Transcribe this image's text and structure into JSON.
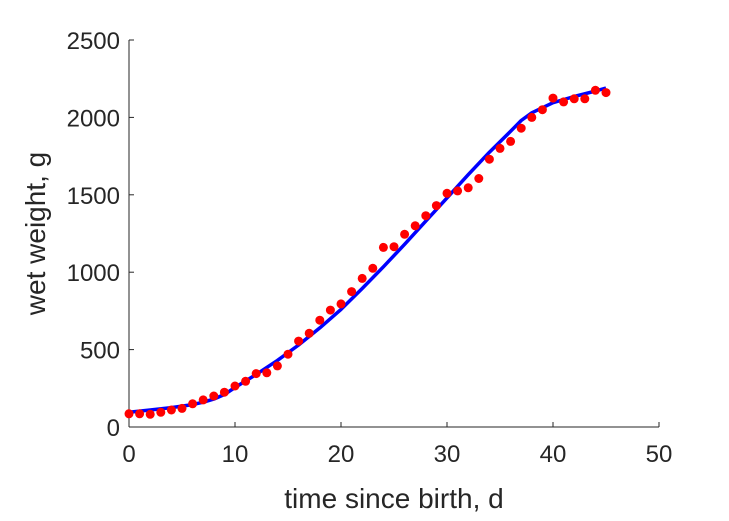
{
  "chart_data": {
    "type": "scatter",
    "title": "",
    "xlabel": "time since birth, d",
    "ylabel": "wet weight, g",
    "xlim": [
      0,
      50
    ],
    "ylim": [
      0,
      2500
    ],
    "x_ticks": [
      0,
      10,
      20,
      30,
      40,
      50
    ],
    "y_ticks": [
      0,
      500,
      1000,
      1500,
      2000,
      2500
    ],
    "x_tick_labels": [
      "0",
      "10",
      "20",
      "30",
      "40",
      "50"
    ],
    "y_tick_labels": [
      "0",
      "500",
      "1000",
      "1500",
      "2000",
      "2500"
    ],
    "grid": false,
    "legend": "none",
    "series": [
      {
        "kind": "scatter",
        "color": "#ff0000",
        "points": [
          [
            0,
            85
          ],
          [
            1,
            85
          ],
          [
            2,
            82
          ],
          [
            3,
            95
          ],
          [
            4,
            110
          ],
          [
            5,
            120
          ],
          [
            6,
            150
          ],
          [
            7,
            175
          ],
          [
            8,
            200
          ],
          [
            9,
            225
          ],
          [
            10,
            265
          ],
          [
            11,
            295
          ],
          [
            12,
            345
          ],
          [
            13,
            350
          ],
          [
            14,
            395
          ],
          [
            15,
            470
          ],
          [
            16,
            555
          ],
          [
            17,
            605
          ],
          [
            18,
            690
          ],
          [
            19,
            755
          ],
          [
            20,
            795
          ],
          [
            21,
            875
          ],
          [
            22,
            960
          ],
          [
            23,
            1025
          ],
          [
            24,
            1160
          ],
          [
            25,
            1165
          ],
          [
            26,
            1245
          ],
          [
            27,
            1300
          ],
          [
            28,
            1365
          ],
          [
            29,
            1430
          ],
          [
            30,
            1510
          ],
          [
            31,
            1525
          ],
          [
            32,
            1545
          ],
          [
            33,
            1605
          ],
          [
            34,
            1730
          ],
          [
            35,
            1800
          ],
          [
            36,
            1845
          ],
          [
            37,
            1930
          ],
          [
            38,
            2000
          ],
          [
            39,
            2050
          ],
          [
            40,
            2125
          ],
          [
            41,
            2100
          ],
          [
            42,
            2120
          ],
          [
            43,
            2120
          ],
          [
            44,
            2175
          ],
          [
            45,
            2160
          ]
        ]
      },
      {
        "kind": "line",
        "color": "#0000ff",
        "points": [
          [
            0,
            95
          ],
          [
            2,
            110
          ],
          [
            4,
            125
          ],
          [
            6,
            145
          ],
          [
            7,
            160
          ],
          [
            8,
            180
          ],
          [
            9,
            210
          ],
          [
            10,
            255
          ],
          [
            12,
            340
          ],
          [
            14,
            430
          ],
          [
            16,
            530
          ],
          [
            18,
            640
          ],
          [
            20,
            760
          ],
          [
            22,
            895
          ],
          [
            24,
            1035
          ],
          [
            26,
            1180
          ],
          [
            28,
            1330
          ],
          [
            30,
            1480
          ],
          [
            32,
            1630
          ],
          [
            34,
            1775
          ],
          [
            36,
            1910
          ],
          [
            37,
            1980
          ],
          [
            38,
            2030
          ],
          [
            40,
            2095
          ],
          [
            42,
            2135
          ],
          [
            44,
            2170
          ],
          [
            45,
            2190
          ]
        ]
      }
    ]
  }
}
